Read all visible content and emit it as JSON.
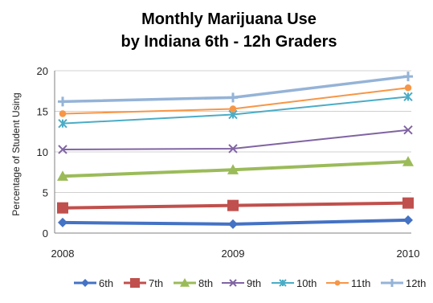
{
  "chart_data": {
    "type": "line",
    "title": [
      "Monthly Marijuana Use",
      "by Indiana 6th - 12h Graders"
    ],
    "xlabel": "",
    "ylabel": "Percentage of Student Using",
    "categories": [
      "2008",
      "2009",
      "2010"
    ],
    "ylim": [
      0,
      20
    ],
    "yticks": [
      0,
      5,
      10,
      15,
      20
    ],
    "grid": true,
    "legend_position": "bottom",
    "series": [
      {
        "name": "6th",
        "values": [
          1.3,
          1.1,
          1.6
        ],
        "color": "#4472c4",
        "marker": "diamond"
      },
      {
        "name": "7th",
        "values": [
          3.1,
          3.4,
          3.7
        ],
        "color": "#c0504d",
        "marker": "square"
      },
      {
        "name": "8th",
        "values": [
          7.0,
          7.8,
          8.8
        ],
        "color": "#9bbb59",
        "marker": "triangle"
      },
      {
        "name": "9th",
        "values": [
          10.3,
          10.4,
          12.7
        ],
        "color": "#8064a2",
        "marker": "x"
      },
      {
        "name": "10th",
        "values": [
          13.5,
          14.6,
          16.8
        ],
        "color": "#4bacc6",
        "marker": "star"
      },
      {
        "name": "11th",
        "values": [
          14.7,
          15.3,
          17.9
        ],
        "color": "#f79646",
        "marker": "circle"
      },
      {
        "name": "12th",
        "values": [
          16.2,
          16.7,
          19.3
        ],
        "color": "#95b3d7",
        "marker": "plus"
      }
    ]
  }
}
